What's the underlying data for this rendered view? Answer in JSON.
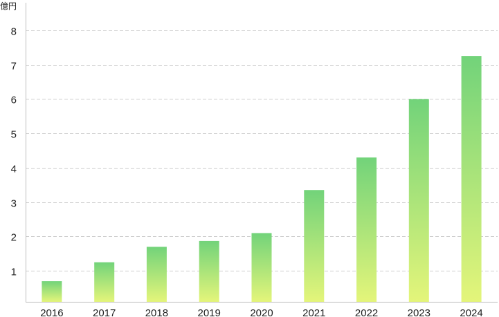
{
  "chart_data": {
    "type": "bar",
    "ylabel": "億円",
    "categories": [
      "2016",
      "2017",
      "2018",
      "2019",
      "2020",
      "2021",
      "2022",
      "2023",
      "2024"
    ],
    "values": [
      0.7,
      1.25,
      1.7,
      1.87,
      2.1,
      3.35,
      4.3,
      6.0,
      7.25
    ],
    "ylim": [
      0.1,
      8.8
    ],
    "yticks": [
      "1",
      "2",
      "3",
      "4",
      "5",
      "6",
      "7",
      "8"
    ],
    "grid": true,
    "legend": "none",
    "colors": {
      "bar_top": "#72d37a",
      "bar_bottom": "#e4f57a",
      "grid": "#cccccc",
      "axis": "#bbbbbb"
    }
  }
}
